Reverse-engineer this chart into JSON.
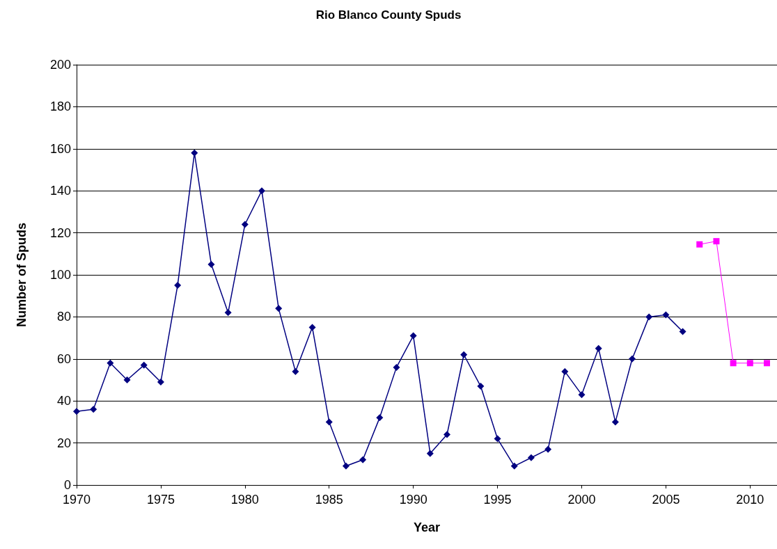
{
  "chart_data": {
    "type": "line",
    "title": "Rio Blanco County Spuds",
    "xlabel": "Year",
    "ylabel": "Number of Spuds",
    "xlim": [
      1970,
      2011.6
    ],
    "xticks": [
      1970,
      1975,
      1980,
      1985,
      1990,
      1995,
      2000,
      2005,
      2010
    ],
    "ylim": [
      0,
      200
    ],
    "yticks": [
      0,
      20,
      40,
      60,
      80,
      100,
      120,
      140,
      160,
      180,
      200
    ],
    "grid": "y",
    "line_style": "solid",
    "series": [
      {
        "color": "#000080",
        "marker": "diamond",
        "x": [
          1970,
          1971,
          1972,
          1973,
          1974,
          1975,
          1976,
          1977,
          1978,
          1979,
          1980,
          1981,
          1982,
          1983,
          1984,
          1985,
          1986,
          1987,
          1988,
          1989,
          1990,
          1991,
          1992,
          1993,
          1994,
          1995,
          1996,
          1997,
          1998,
          1999,
          2000,
          2001,
          2002,
          2003,
          2004,
          2005,
          2006
        ],
        "values": [
          35,
          36,
          58,
          50,
          57,
          49,
          95,
          158,
          105,
          82,
          124,
          140,
          84,
          54,
          75,
          30,
          9,
          12,
          32,
          56,
          71,
          15,
          24,
          62,
          47,
          22,
          9,
          13,
          17,
          54,
          43,
          65,
          30,
          60,
          80,
          81,
          73
        ]
      },
      {
        "color": "#ff00ff",
        "marker": "square",
        "x": [
          2007,
          2008,
          2009,
          2010,
          2011
        ],
        "values": [
          114.5,
          116,
          58,
          58,
          58
        ]
      }
    ]
  }
}
